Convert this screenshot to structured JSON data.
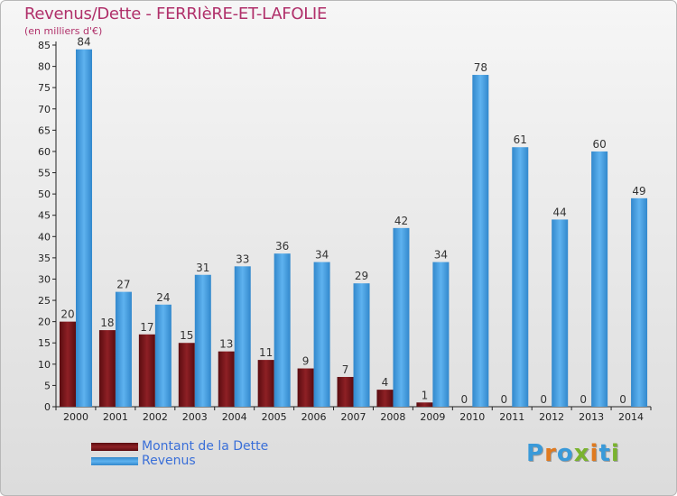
{
  "title": "Revenus/Dette - FERRIèRE-ET-LAFOLIE",
  "subtitle": "(en milliers d'€)",
  "logo": {
    "letters": [
      "P",
      "r",
      "o",
      "x",
      "i",
      "t",
      "i"
    ],
    "colors": [
      "#3a9ad9",
      "#e07a1f",
      "#3a9ad9",
      "#7ab32e",
      "#e07a1f",
      "#3a9ad9",
      "#7ab32e"
    ]
  },
  "colors": {
    "dette": "#7a1418",
    "revenus": "#4da3e6"
  },
  "chart_data": {
    "type": "bar",
    "categories": [
      "2000",
      "2001",
      "2002",
      "2003",
      "2004",
      "2005",
      "2006",
      "2007",
      "2008",
      "2009",
      "2010",
      "2011",
      "2012",
      "2013",
      "2014"
    ],
    "series": [
      {
        "name": "Montant de la Dette",
        "values": [
          20,
          18,
          17,
          15,
          13,
          11,
          9,
          7,
          4,
          1,
          0,
          0,
          0,
          0,
          0
        ]
      },
      {
        "name": "Revenus",
        "values": [
          84,
          27,
          24,
          31,
          33,
          36,
          34,
          29,
          42,
          34,
          78,
          61,
          44,
          60,
          49
        ]
      }
    ],
    "ylim": [
      0,
      85
    ],
    "yticks": [
      0,
      5,
      10,
      15,
      20,
      25,
      30,
      35,
      40,
      45,
      50,
      55,
      60,
      65,
      70,
      75,
      80,
      85
    ],
    "grid": false,
    "legend": "bottom-left"
  }
}
